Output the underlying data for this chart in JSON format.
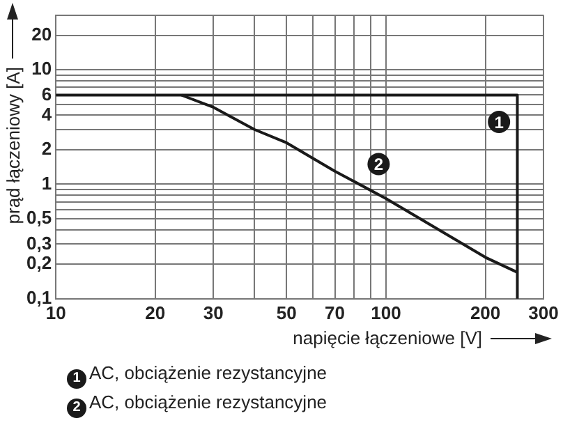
{
  "chart_data": {
    "type": "line",
    "xlabel": "napięcie łączeniowe [V]",
    "ylabel": "prąd łączeniowy [A]",
    "log": "xy",
    "grid": true,
    "legend": "bottom",
    "marker": "none",
    "line_style": "solid",
    "xlim": [
      10,
      300
    ],
    "ylim": [
      0.1,
      30
    ],
    "xticks": [
      10,
      20,
      30,
      {
        "value": 40,
        "label": null
      },
      50,
      {
        "value": 60,
        "label": null
      },
      70,
      {
        "value": 80,
        "label": null
      },
      {
        "value": 90,
        "label": null
      },
      100,
      200,
      300
    ],
    "yticks": [
      {
        "value": 0.1,
        "label": "0,1"
      },
      {
        "value": 0.2,
        "label": "0,2"
      },
      {
        "value": 0.3,
        "label": "0,3"
      },
      {
        "value": 0.4,
        "label": null
      },
      {
        "value": 0.5,
        "label": "0,5"
      },
      {
        "value": 0.6,
        "label": null
      },
      {
        "value": 0.7,
        "label": null
      },
      {
        "value": 0.8,
        "label": null
      },
      {
        "value": 0.9,
        "label": null
      },
      1,
      2,
      {
        "value": 3,
        "label": null
      },
      4,
      {
        "value": 5,
        "label": null
      },
      6,
      {
        "value": 7,
        "label": null
      },
      {
        "value": 8,
        "label": null
      },
      {
        "value": 9,
        "label": null
      },
      10,
      20,
      {
        "value": 30,
        "label": null
      }
    ],
    "series": [
      {
        "name": "AC, obciążenie rezystancyjne",
        "color": "#1a1a1a",
        "x": [
          10,
          250,
          250
        ],
        "values": [
          6,
          6,
          0.1
        ]
      },
      {
        "name": "AC, obciążenie rezystancyjne",
        "color": "#1a1a1a",
        "x": [
          24,
          30,
          40,
          50,
          70,
          100,
          200,
          250
        ],
        "values": [
          6,
          4.7,
          3,
          2.3,
          1.3,
          0.75,
          0.23,
          0.17
        ]
      }
    ],
    "annotations": [
      {
        "text": "1",
        "x": 220,
        "y": 3.5
      },
      {
        "text": "2",
        "x": 95,
        "y": 1.5
      }
    ]
  }
}
